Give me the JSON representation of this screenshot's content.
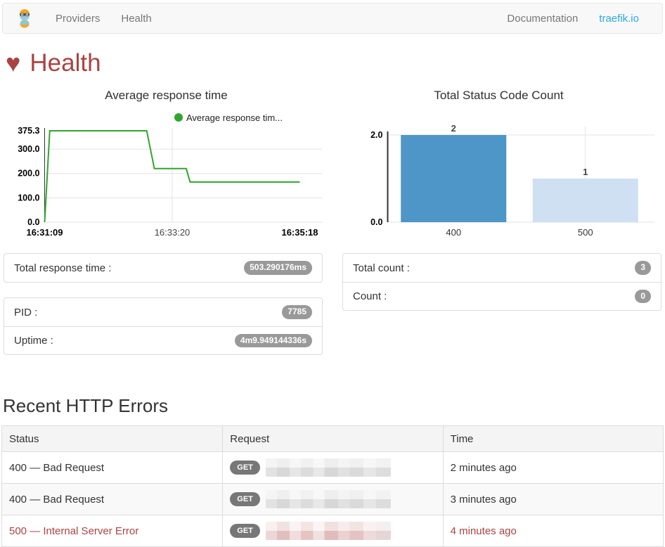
{
  "navbar": {
    "logo": "traefik-gopher",
    "items": [
      {
        "label": "Providers"
      },
      {
        "label": "Health"
      }
    ],
    "right_items": [
      {
        "label": "Documentation"
      },
      {
        "label": "traefik.io"
      }
    ]
  },
  "page": {
    "title": "Health",
    "accent_color": "#a94442"
  },
  "chart_data": [
    {
      "type": "line",
      "title": "Average response time",
      "legend": [
        {
          "label": "Average response tim...",
          "color": "#2fa62f"
        }
      ],
      "x_ticks": [
        "16:31:09",
        "16:33:20",
        "16:35:18"
      ],
      "y_ticks": [
        "0.0",
        "100.0",
        "200.0",
        "300.0",
        "375.3"
      ],
      "ylim": [
        0,
        375.3
      ],
      "grid": true,
      "series": [
        {
          "name": "Average response time",
          "color": "#2fa62f",
          "points": [
            [
              0,
              0
            ],
            [
              0.02,
              375.3
            ],
            [
              0.4,
              375.3
            ],
            [
              0.43,
              220
            ],
            [
              0.555,
              220
            ],
            [
              0.57,
              165
            ],
            [
              1,
              165
            ]
          ]
        }
      ]
    },
    {
      "type": "bar",
      "title": "Total Status Code Count",
      "categories": [
        "400",
        "500"
      ],
      "values": [
        2,
        1
      ],
      "data_labels": [
        "2",
        "1"
      ],
      "bar_colors": [
        "#4e96c8",
        "#cfe0f2"
      ],
      "y_ticks": [
        "0.0",
        "2.0"
      ],
      "ylim": [
        0,
        2
      ],
      "grid": true
    }
  ],
  "stats": {
    "response_time": {
      "label": "Total response time :",
      "value": "503.290176ms"
    },
    "pid": {
      "label": "PID :",
      "value": "7785"
    },
    "uptime": {
      "label": "Uptime :",
      "value": "4m9.949144336s"
    },
    "total_count": {
      "label": "Total count :",
      "value": "3"
    },
    "count": {
      "label": "Count :",
      "value": "0"
    }
  },
  "errors": {
    "title": "Recent HTTP Errors",
    "columns": [
      "Status",
      "Request",
      "Time"
    ],
    "rows": [
      {
        "status": "400 — Bad Request",
        "method": "GET",
        "request_redacted": true,
        "time": "2 minutes ago",
        "error_style": false
      },
      {
        "status": "400 — Bad Request",
        "method": "GET",
        "request_redacted": true,
        "time": "3 minutes ago",
        "error_style": false
      },
      {
        "status": "500 — Internal Server Error",
        "method": "GET",
        "request_redacted": true,
        "time": "4 minutes ago",
        "error_style": true
      }
    ]
  },
  "colors": {
    "nav_link": "#777777",
    "traefik_link": "#29aae3",
    "health_red": "#a94442",
    "line_green": "#2fa62f",
    "bar_dark_blue": "#4e96c8",
    "bar_light_blue": "#cfe0f2",
    "badge_gray": "#999999",
    "get_badge_gray": "#777777"
  }
}
